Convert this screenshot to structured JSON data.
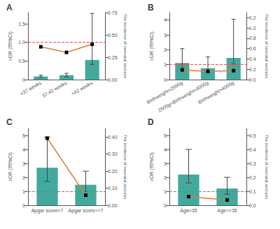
{
  "chart_data": [
    {
      "type": "bar",
      "title": "A",
      "categories": [
        "<37 weeks",
        "37-42 weeks",
        ">42 weeks"
      ],
      "ylabel": "cOR (95%CI)",
      "y2label": "The incidence of neonatal seizures",
      "ylim": [
        0,
        1.8
      ],
      "yticks": [
        0,
        0.5,
        {
          "value": 1.0,
          "label": "1.0"
        },
        1.5
      ],
      "y2lim": [
        0,
        0.75
      ],
      "y2ticks": [
        {
          "value": 0,
          "label": "0.00"
        },
        0.25,
        {
          "value": 0.5,
          "label": "0.50"
        },
        0.75
      ],
      "grid": false,
      "series": [
        {
          "type": "bar",
          "axis": "y2",
          "color": "#2a9d8f",
          "values": [
            0.035,
            0.05,
            0.22
          ],
          "error_low": [
            0.01,
            0.02,
            0.05
          ],
          "error_high": [
            0.015,
            0.02,
            0.52
          ]
        },
        {
          "type": "line",
          "color": "#e07b39",
          "marker": "square",
          "values": [
            0.88,
            0.73,
            0.95
          ]
        }
      ],
      "reference_line": {
        "y": 1.0,
        "color": "#e05555",
        "line_style": "dashed"
      }
    },
    {
      "type": "bar",
      "title": "B",
      "categories": [
        "Birthweight<2500g",
        "2500g<Birthweight<4000g",
        "Birthweight>4000g"
      ],
      "ylabel": "cOR (95%CI)",
      "y2label": "The incidence of neonatal seizures",
      "ylim": [
        0,
        4.5
      ],
      "yticks": [
        0,
        1,
        2,
        3,
        4
      ],
      "y2lim": [
        0,
        1.3
      ],
      "y2ticks": [
        {
          "value": 0,
          "label": "0.0"
        },
        0.2,
        0.4,
        0.6,
        0.8,
        {
          "value": 1.0,
          "label": "1.0"
        },
        1.2
      ],
      "grid": false,
      "series": [
        {
          "type": "bar",
          "axis": "y2",
          "color": "#2a9d8f",
          "values": [
            0.32,
            0.22,
            0.42
          ],
          "error_low": [
            0.12,
            0.08,
            0.12
          ],
          "error_high": [
            0.28,
            0.22,
            0.75
          ]
        },
        {
          "type": "line",
          "color": "#e07b39",
          "marker": "square",
          "values": [
            0.65,
            0.55,
            0.6
          ]
        }
      ],
      "reference_line": {
        "y": 1.0,
        "color": "#e05555",
        "line_style": "dashed"
      }
    },
    {
      "type": "bar",
      "title": "C",
      "categories": [
        "Apgar score<7",
        "Apgar score>=7"
      ],
      "ylabel": "cOR (95%CI)",
      "y2label": "The incidence of neonatal seizures",
      "ylim": [
        0,
        5.5
      ],
      "yticks": [
        0,
        1,
        2,
        3,
        4,
        5
      ],
      "y2lim": [
        0,
        0.45
      ],
      "y2ticks": [
        {
          "value": 0,
          "label": "0.00"
        },
        {
          "value": 0.1,
          "label": "0.10"
        },
        {
          "value": 0.2,
          "label": "0.20"
        },
        {
          "value": 0.3,
          "label": "0.30"
        },
        {
          "value": 0.4,
          "label": "0.40"
        }
      ],
      "grid": false,
      "series": [
        {
          "type": "bar",
          "axis": "y2",
          "color": "#2a9d8f",
          "values": [
            0.22,
            0.12
          ],
          "error_low": [
            0.08,
            0.04
          ],
          "error_high": [
            0.18,
            0.08
          ]
        },
        {
          "type": "line",
          "color": "#e07b39",
          "marker": "square",
          "values": [
            4.8,
            0.72
          ]
        }
      ],
      "reference_line": {
        "y": 1.0,
        "color": "#e05555",
        "line_style": "dashed"
      }
    },
    {
      "type": "bar",
      "title": "D",
      "categories": [
        "Age<35",
        "Age>=35"
      ],
      "ylabel": "cOR (95%CI)",
      "y2label": "The incidence of neonatal seizures",
      "ylim": [
        0,
        5.5
      ],
      "yticks": [
        0,
        1,
        2,
        3,
        4,
        5
      ],
      "y2lim": [
        0,
        0.55
      ],
      "y2ticks": [
        {
          "value": 0,
          "label": "0.0"
        },
        0.1,
        0.2,
        0.3,
        0.4,
        0.5
      ],
      "grid": false,
      "series": [
        {
          "type": "bar",
          "axis": "y2",
          "color": "#2a9d8f",
          "values": [
            0.22,
            0.12
          ],
          "error_low": [
            0.06,
            0.04
          ],
          "error_high": [
            0.18,
            0.08
          ]
        },
        {
          "type": "line",
          "color": "#e07b39",
          "marker": "square",
          "values": [
            0.62,
            0.38
          ]
        }
      ],
      "reference_line": {
        "y": 1.0,
        "color": "#e05555",
        "line_style": "dashed"
      }
    }
  ]
}
